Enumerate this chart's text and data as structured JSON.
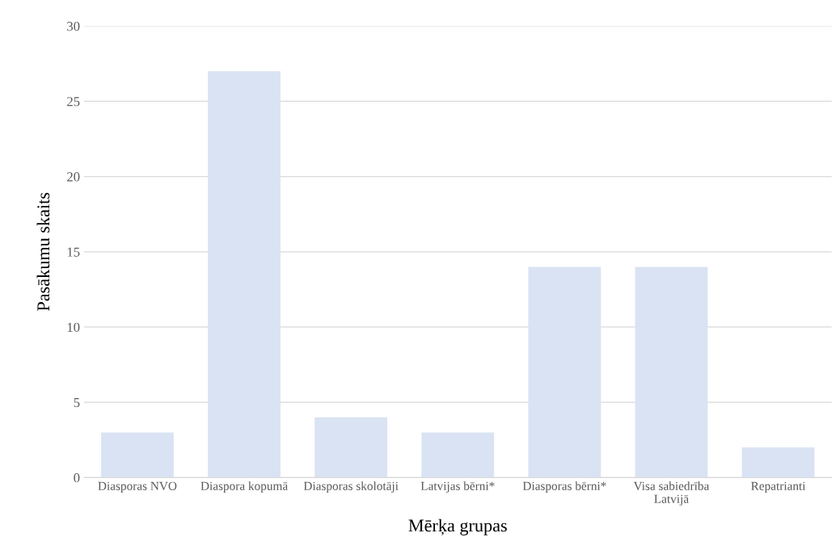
{
  "chart_data": {
    "type": "bar",
    "categories": [
      "Diasporas NVO",
      "Diaspora kopumā",
      "Diasporas skolotāji",
      "Latvijas bērni*",
      "Diasporas bērni*",
      "Visa sabiedrība Latvijā",
      "Repatrianti"
    ],
    "values": [
      3,
      27,
      4,
      3,
      14,
      14,
      2
    ],
    "color": "#dae3f3",
    "xlabel": "Mērķa grupas",
    "ylabel": "Pasākumu skaits",
    "ylim": [
      0,
      30
    ],
    "yticks": [
      0,
      5,
      10,
      15,
      20,
      25,
      30
    ],
    "grid": "y"
  }
}
